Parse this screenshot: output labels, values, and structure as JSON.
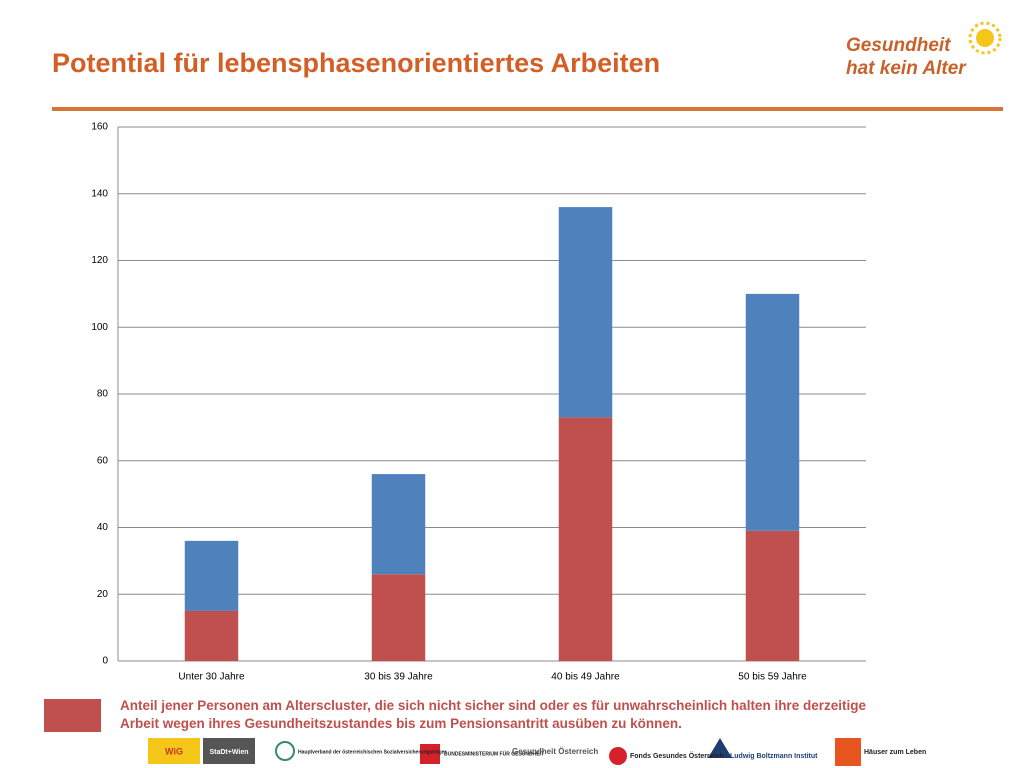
{
  "header": {
    "title": "Potential für lebensphasenorientiertes Arbeiten",
    "logo": [
      "Gesundheit",
      "hat kein Alter"
    ]
  },
  "chart_data": {
    "type": "stacked_bar",
    "categories": [
      "Unter 30 Jahre",
      "30 bis 39 Jahre",
      "40 bis 49 Jahre",
      "50 bis 59 Jahre"
    ],
    "series": [
      {
        "name": "Anteil jener Personen am Alterscluster, die sich nicht sicher sind oder es für unwahrscheinlich halten ihre derzeitige Arbeit wegen ihres Gesundheitszustandes bis zum Pensionsantritt ausüben zu können.",
        "color": "#c0504d",
        "values": [
          15,
          26,
          73,
          39
        ]
      },
      {
        "color": "#4f81bd",
        "values": [
          21,
          30,
          63,
          71
        ]
      }
    ],
    "ylim": [
      0,
      160
    ],
    "yticks": [
      0,
      20,
      40,
      60,
      80,
      100,
      120,
      140,
      160
    ],
    "grid": true
  },
  "footer": {
    "logos": [
      "WiG",
      "StaDt+Wien",
      "Hauptverband der österreichischen Sozialversicherungsträger",
      "BUNDESMINISTERIUM FÜR GESUNDHEIT",
      "Gesundheit Österreich",
      "Fonds Gesundes Österreich",
      "Ludwig Boltzmann Institut",
      "Häuser zum Leben"
    ]
  }
}
